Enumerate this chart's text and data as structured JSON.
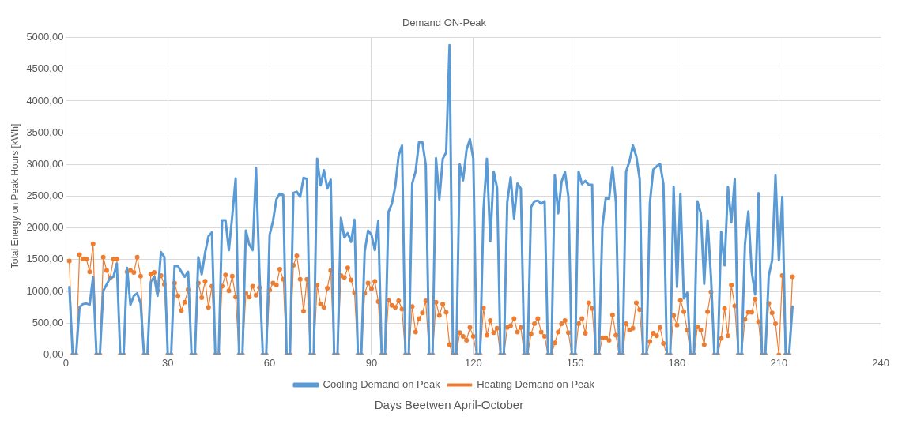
{
  "chart_data": {
    "type": "line",
    "title": "Demand ON-Peak",
    "xlabel": "Days Beetwen April-October",
    "ylabel": "Total Energy on Peak Hours [kWh]",
    "x": [
      1,
      2,
      3,
      4,
      5,
      6,
      7,
      8,
      9,
      10,
      11,
      12,
      13,
      14,
      15,
      16,
      17,
      18,
      19,
      20,
      21,
      22,
      23,
      24,
      25,
      26,
      27,
      28,
      29,
      30,
      31,
      32,
      33,
      34,
      35,
      36,
      37,
      38,
      39,
      40,
      41,
      42,
      43,
      44,
      45,
      46,
      47,
      48,
      49,
      50,
      51,
      52,
      53,
      54,
      55,
      56,
      57,
      58,
      59,
      60,
      61,
      62,
      63,
      64,
      65,
      66,
      67,
      68,
      69,
      70,
      71,
      72,
      73,
      74,
      75,
      76,
      77,
      78,
      79,
      80,
      81,
      82,
      83,
      84,
      85,
      86,
      87,
      88,
      89,
      90,
      91,
      92,
      93,
      94,
      95,
      96,
      97,
      98,
      99,
      100,
      101,
      102,
      103,
      104,
      105,
      106,
      107,
      108,
      109,
      110,
      111,
      112,
      113,
      114,
      115,
      116,
      117,
      118,
      119,
      120,
      121,
      122,
      123,
      124,
      125,
      126,
      127,
      128,
      129,
      130,
      131,
      132,
      133,
      134,
      135,
      136,
      137,
      138,
      139,
      140,
      141,
      142,
      143,
      144,
      145,
      146,
      147,
      148,
      149,
      150,
      151,
      152,
      153,
      154,
      155,
      156,
      157,
      158,
      159,
      160,
      161,
      162,
      163,
      164,
      165,
      166,
      167,
      168,
      169,
      170,
      171,
      172,
      173,
      174,
      175,
      176,
      177,
      178,
      179,
      180,
      181,
      182,
      183,
      184,
      185,
      186,
      187,
      188,
      189,
      190,
      191,
      192,
      193,
      194,
      195,
      196,
      197,
      198,
      199,
      200,
      201,
      202,
      203,
      204,
      205,
      206,
      207,
      208,
      209,
      210,
      211,
      212,
      213,
      214
    ],
    "series": [
      {
        "name": "Cooling Demand on Peak",
        "color": "#5b9bd5",
        "marker": "none",
        "values": [
          1070,
          0,
          0,
          750,
          800,
          810,
          790,
          1230,
          0,
          0,
          1010,
          1110,
          1210,
          1230,
          1440,
          0,
          0,
          1370,
          790,
          930,
          970,
          810,
          0,
          0,
          1150,
          1230,
          930,
          1620,
          1540,
          0,
          0,
          1400,
          1400,
          1310,
          1230,
          1310,
          0,
          0,
          1540,
          1270,
          1610,
          1870,
          1930,
          0,
          0,
          2120,
          2120,
          1650,
          2190,
          2780,
          0,
          0,
          1960,
          1740,
          1650,
          2950,
          1300,
          0,
          0,
          1890,
          2110,
          2450,
          2540,
          2520,
          0,
          0,
          2550,
          2570,
          2490,
          2790,
          2770,
          0,
          0,
          3090,
          2670,
          2910,
          2620,
          2760,
          0,
          0,
          2160,
          1850,
          1920,
          1780,
          2130,
          0,
          0,
          1630,
          1960,
          1890,
          1650,
          2110,
          0,
          0,
          2250,
          2380,
          2650,
          3140,
          3300,
          0,
          0,
          2700,
          2890,
          3350,
          3350,
          2990,
          0,
          0,
          3100,
          2450,
          3090,
          3190,
          4880,
          0,
          0,
          3000,
          2750,
          3230,
          3400,
          3090,
          0,
          0,
          2290,
          3090,
          1790,
          2890,
          2630,
          0,
          0,
          2410,
          2800,
          2150,
          2700,
          2620,
          0,
          0,
          2330,
          2420,
          2430,
          2380,
          2420,
          0,
          0,
          2830,
          2230,
          2730,
          2880,
          2490,
          0,
          0,
          2890,
          2690,
          2740,
          2680,
          2680,
          0,
          0,
          2010,
          2470,
          2460,
          2960,
          2410,
          0,
          0,
          2890,
          3050,
          3300,
          3130,
          2770,
          0,
          0,
          2390,
          2920,
          2970,
          3010,
          2690,
          0,
          0,
          2650,
          1070,
          2540,
          890,
          980,
          0,
          0,
          2420,
          2230,
          1120,
          2120,
          1230,
          0,
          0,
          1940,
          1410,
          2650,
          2090,
          2770,
          0,
          0,
          1740,
          2260,
          1310,
          950,
          2550,
          0,
          0,
          1240,
          1490,
          2830,
          1490,
          2490,
          0,
          0,
          760
        ]
      },
      {
        "name": "Heating Demand on Peak",
        "color": "#ed7d31",
        "marker": "circle",
        "values": [
          1480,
          0,
          0,
          1580,
          1510,
          1510,
          1310,
          1750,
          0,
          0,
          1540,
          1330,
          1210,
          1510,
          1510,
          0,
          0,
          1310,
          1330,
          1300,
          1540,
          1240,
          0,
          0,
          1270,
          1300,
          1010,
          1250,
          1110,
          0,
          0,
          1130,
          930,
          700,
          830,
          1030,
          0,
          0,
          1130,
          900,
          1160,
          750,
          1080,
          0,
          0,
          1080,
          1260,
          1010,
          1240,
          910,
          0,
          0,
          970,
          910,
          1080,
          940,
          1060,
          0,
          0,
          1020,
          1130,
          1100,
          1350,
          1190,
          0,
          0,
          1410,
          1560,
          1190,
          690,
          1190,
          0,
          0,
          1100,
          800,
          750,
          1050,
          1330,
          0,
          0,
          1250,
          1220,
          1370,
          1180,
          980,
          0,
          0,
          970,
          1130,
          1040,
          1160,
          840,
          0,
          0,
          860,
          780,
          750,
          850,
          720,
          0,
          0,
          760,
          360,
          570,
          660,
          850,
          0,
          0,
          830,
          620,
          800,
          670,
          160,
          0,
          0,
          350,
          290,
          230,
          430,
          290,
          0,
          0,
          740,
          310,
          540,
          350,
          420,
          0,
          0,
          430,
          460,
          570,
          360,
          430,
          0,
          0,
          330,
          490,
          570,
          360,
          290,
          0,
          0,
          190,
          360,
          490,
          540,
          350,
          0,
          0,
          490,
          570,
          340,
          820,
          730,
          0,
          0,
          270,
          270,
          230,
          630,
          310,
          0,
          0,
          490,
          390,
          420,
          820,
          710,
          0,
          0,
          210,
          340,
          300,
          430,
          180,
          0,
          0,
          620,
          470,
          860,
          680,
          390,
          0,
          0,
          440,
          390,
          160,
          680,
          990,
          0,
          0,
          260,
          730,
          300,
          1100,
          770,
          0,
          0,
          560,
          670,
          670,
          880,
          520,
          0,
          0,
          810,
          660,
          490,
          0,
          1250,
          0,
          0,
          1230
        ]
      }
    ],
    "xlim": [
      0,
      240
    ],
    "xticks": [
      0,
      30,
      60,
      90,
      120,
      150,
      180,
      210,
      240
    ],
    "ylim": [
      0,
      5000
    ],
    "yticks": [
      {
        "value": 0,
        "label": "0,00"
      },
      {
        "value": 500,
        "label": "500,00"
      },
      {
        "value": 1000,
        "label": "1000,00"
      },
      {
        "value": 1500,
        "label": "1500,00"
      },
      {
        "value": 2000,
        "label": "2000,00"
      },
      {
        "value": 2500,
        "label": "2500,00"
      },
      {
        "value": 3000,
        "label": "3000,00"
      },
      {
        "value": 3500,
        "label": "3500,00"
      },
      {
        "value": 4000,
        "label": "4000,00"
      },
      {
        "value": 4500,
        "label": "4500,00"
      },
      {
        "value": 5000,
        "label": "5000,00"
      }
    ],
    "grid": true,
    "legend": "bottom"
  }
}
